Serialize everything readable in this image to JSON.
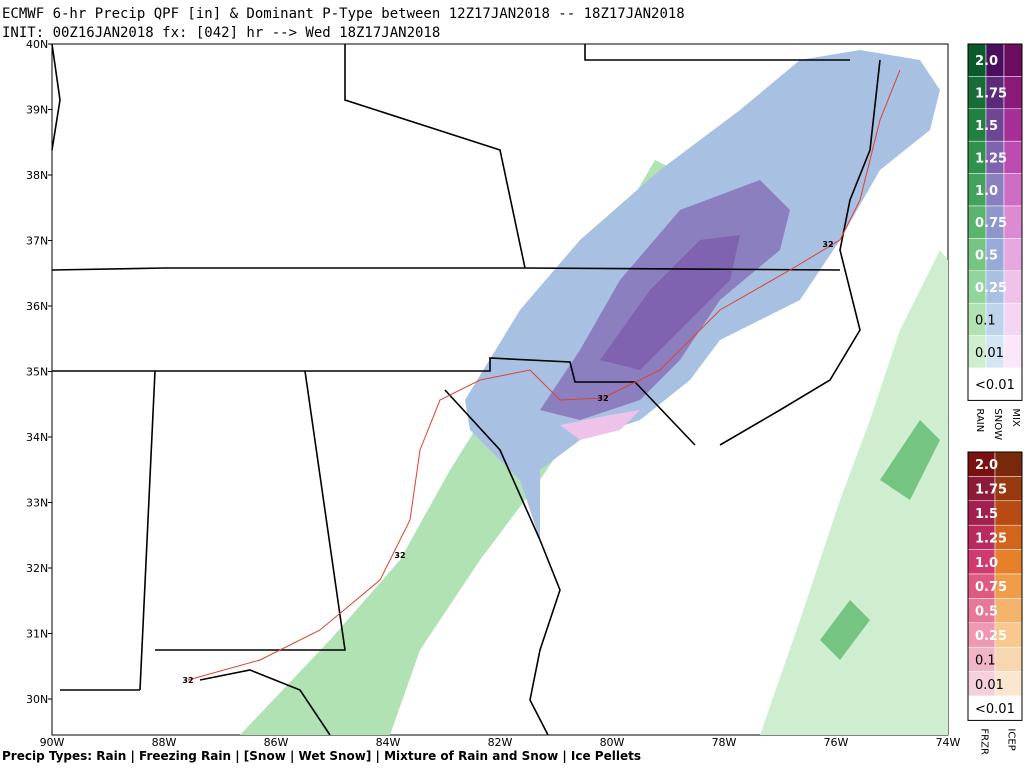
{
  "header": {
    "line1": "ECMWF 6-hr Precip QPF [in] & Dominant P-Type between 12Z17JAN2018 -- 18Z17JAN2018",
    "line2": "INIT: 00Z16JAN2018 fx: [042] hr --> Wed 18Z17JAN2018"
  },
  "map": {
    "lat_labels": [
      "40N",
      "39N",
      "38N",
      "37N",
      "36N",
      "35N",
      "34N",
      "33N",
      "32N",
      "31N",
      "30N"
    ],
    "lon_labels": [
      "90W",
      "88W",
      "86W",
      "84W",
      "82W",
      "80W",
      "78W",
      "76W",
      "74W"
    ],
    "contour_labels": [
      "32",
      "32",
      "32",
      "32"
    ]
  },
  "legend": {
    "rain_snow_mix": {
      "levels": [
        "2.0",
        "1.75",
        "1.5",
        "1.25",
        "1.0",
        "0.75",
        "0.5",
        "0.25",
        "0.1",
        "0.01",
        "<0.01"
      ],
      "columns": [
        "RAIN",
        "SNOW",
        "MIX"
      ]
    },
    "frzr_icep": {
      "levels": [
        "2.0",
        "1.75",
        "1.5",
        "1.25",
        "1.0",
        "0.75",
        "0.5",
        "0.25",
        "0.1",
        "0.01",
        "<0.01"
      ],
      "columns": [
        "FRZR",
        "ICEP"
      ]
    }
  },
  "footer": "Precip Types: Rain | Freezing Rain | [Snow | Wet Snow] | Mixture of Rain and Snow | Ice Pellets"
}
